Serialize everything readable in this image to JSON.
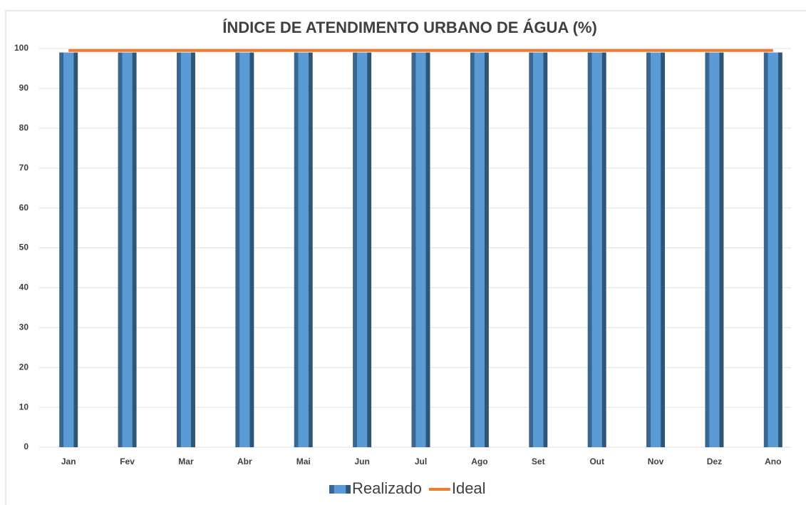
{
  "chart_data": {
    "type": "bar",
    "title": "ÍNDICE DE ATENDIMENTO URBANO DE ÁGUA (%)",
    "categories": [
      "Jan",
      "Fev",
      "Mar",
      "Abr",
      "Mai",
      "Jun",
      "Jul",
      "Ago",
      "Set",
      "Out",
      "Nov",
      "Dez",
      "Ano"
    ],
    "series": [
      {
        "name": "Realizado",
        "type": "bar",
        "color": "#5b9bd5",
        "values": [
          99,
          99,
          99,
          99,
          99,
          99,
          99,
          99,
          99,
          99,
          99,
          99,
          99
        ]
      },
      {
        "name": "Ideal",
        "type": "line",
        "color": "#ed7d31",
        "values": [
          99.5,
          99.5,
          99.5,
          99.5,
          99.5,
          99.5,
          99.5,
          99.5,
          99.5,
          99.5,
          99.5,
          99.5,
          99.5
        ]
      }
    ],
    "ylim": [
      0,
      100
    ],
    "yticks": [
      0,
      10,
      20,
      30,
      40,
      50,
      60,
      70,
      80,
      90,
      100
    ],
    "grid": true,
    "legend": "bottom"
  }
}
